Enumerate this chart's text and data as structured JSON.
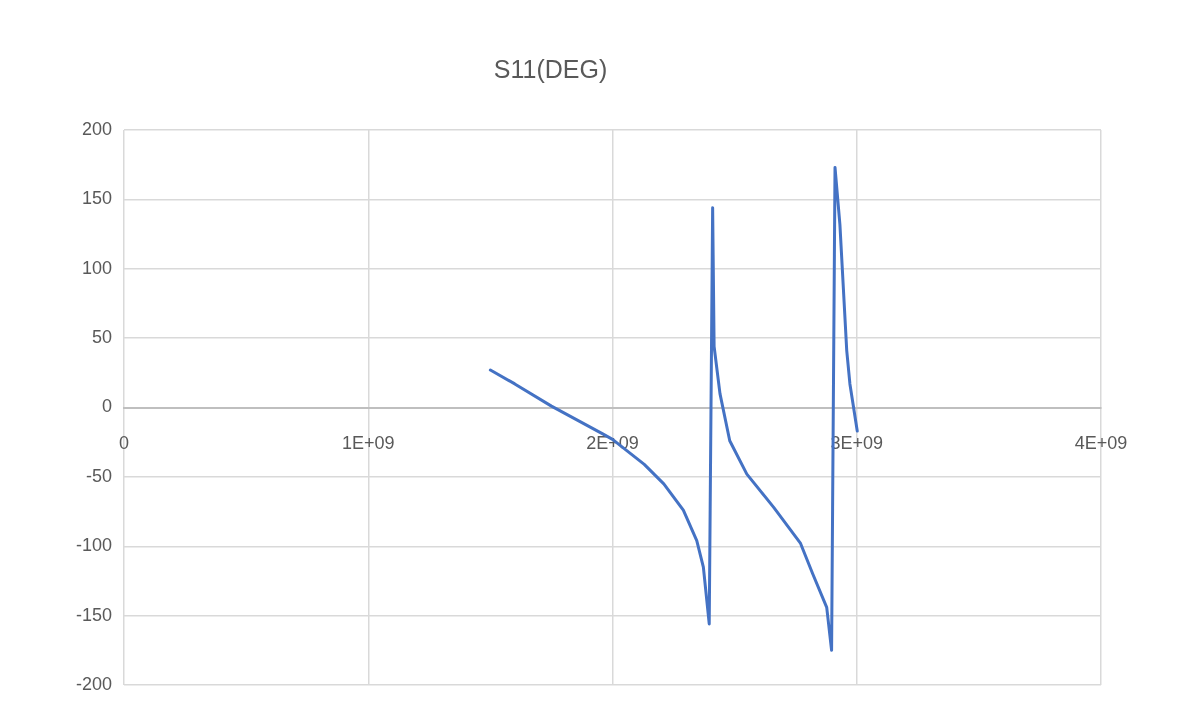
{
  "chart_data": {
    "type": "line",
    "title": "S11(DEG)",
    "x": [
      1500000000,
      1600000000,
      1750000000,
      1960000000,
      2000000000,
      2130000000,
      2210000000,
      2290000000,
      2345000000,
      2372000000,
      2396000000,
      2410000000,
      2416000000,
      2440000000,
      2480000000,
      2550000000,
      2660000000,
      2770000000,
      2820000000,
      2877000000,
      2897000000,
      2911000000,
      2931000000,
      2959000000,
      2972000000,
      3002000000
    ],
    "series": [
      {
        "color": "#4472c4",
        "values": [
          27,
          17,
          1,
          -19,
          -23,
          -41,
          -55,
          -74,
          -96,
          -115,
          -156,
          144,
          44,
          10,
          -24,
          -48,
          -72,
          -98,
          -120,
          -144,
          -175,
          173,
          132,
          41,
          17,
          -17
        ]
      }
    ],
    "xlim": [
      0,
      4000000000
    ],
    "xticks": [
      0,
      {
        "value": 1000000000,
        "label": "1E+09"
      },
      {
        "value": 2000000000,
        "label": "2E+09"
      },
      {
        "value": 3000000000,
        "label": "3E+09"
      },
      {
        "value": 4000000000,
        "label": "4E+09"
      }
    ],
    "ylim": [
      -200,
      200
    ],
    "yticks": [
      -200,
      -150,
      -100,
      -50,
      0,
      50,
      100,
      150,
      200
    ],
    "grid": true,
    "marker": "none"
  }
}
